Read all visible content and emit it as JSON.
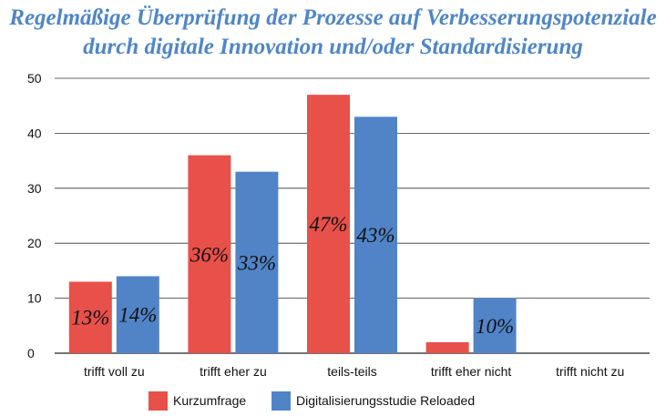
{
  "chart_data": {
    "type": "bar",
    "title_lines": [
      "Regelmäßige Überprüfung der Prozesse auf Verbesserungspotenziale",
      "durch digitale Innovation und/oder Standardisierung"
    ],
    "categories": [
      "trifft voll zu",
      "trifft eher zu",
      "teils-teils",
      "trifft eher nicht",
      "trifft nicht zu"
    ],
    "series": [
      {
        "name": "Kurzumfrage",
        "color": "#e8504a",
        "values": [
          13,
          36,
          47,
          2,
          0
        ],
        "labels": [
          "13%",
          "36%",
          "47%",
          "",
          ""
        ]
      },
      {
        "name": "Digitalisierungsstudie Reloaded",
        "color": "#5184c7",
        "values": [
          14,
          33,
          43,
          10,
          0
        ],
        "labels": [
          "14%",
          "33%",
          "43%",
          "10%",
          ""
        ]
      }
    ],
    "yticks": [
      0,
      10,
      20,
      30,
      40,
      50
    ],
    "ylim": [
      0,
      50
    ],
    "grid": true,
    "legend_position": "bottom-center"
  }
}
